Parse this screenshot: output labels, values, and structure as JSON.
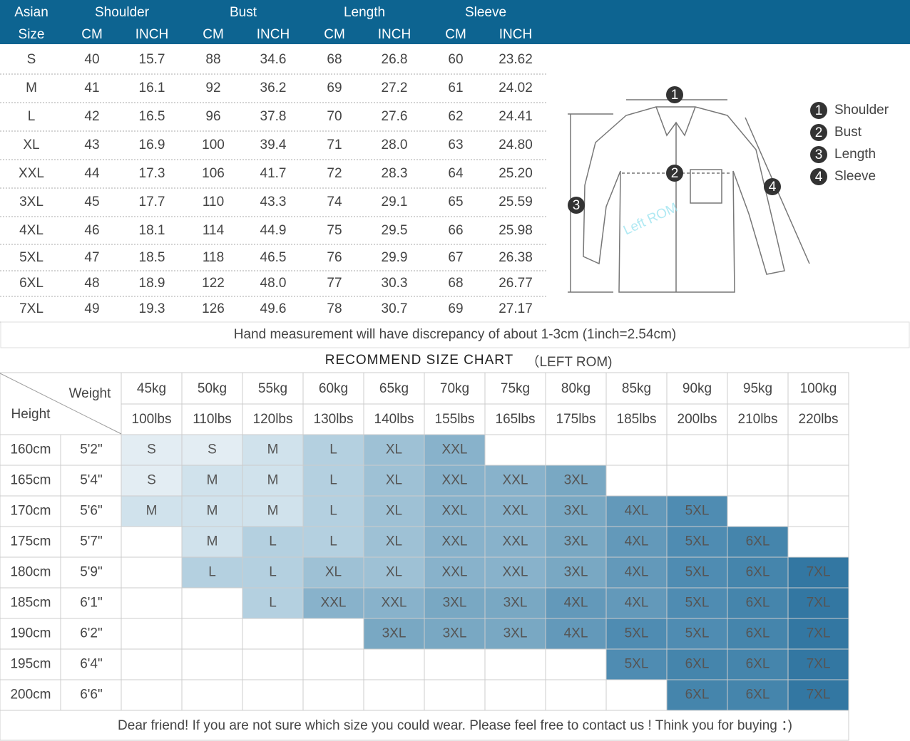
{
  "header": {
    "asian": "Asian",
    "size": "Size",
    "groups": [
      "Shoulder",
      "Bust",
      "Length",
      "Sleeve"
    ],
    "units": [
      "CM",
      "INCH",
      "CM",
      "INCH",
      "CM",
      "INCH",
      "CM",
      "INCH"
    ]
  },
  "measure_table": {
    "rows": [
      [
        "S",
        "40",
        "15.7",
        "88",
        "34.6",
        "68",
        "26.8",
        "60",
        "23.62"
      ],
      [
        "M",
        "41",
        "16.1",
        "92",
        "36.2",
        "69",
        "27.2",
        "61",
        "24.02"
      ],
      [
        "L",
        "42",
        "16.5",
        "96",
        "37.8",
        "70",
        "27.6",
        "62",
        "24.41"
      ],
      [
        "XL",
        "43",
        "16.9",
        "100",
        "39.4",
        "71",
        "28.0",
        "63",
        "24.80"
      ],
      [
        "XXL",
        "44",
        "17.3",
        "106",
        "41.7",
        "72",
        "28.3",
        "64",
        "25.20"
      ],
      [
        "3XL",
        "45",
        "17.7",
        "110",
        "43.3",
        "74",
        "29.1",
        "65",
        "25.59"
      ],
      [
        "4XL",
        "46",
        "18.1",
        "114",
        "44.9",
        "75",
        "29.5",
        "66",
        "25.98"
      ],
      [
        "5XL",
        "47",
        "18.5",
        "118",
        "46.5",
        "76",
        "29.9",
        "67",
        "26.38"
      ],
      [
        "6XL",
        "48",
        "18.9",
        "122",
        "48.0",
        "77",
        "30.3",
        "68",
        "26.77"
      ],
      [
        "7XL",
        "49",
        "19.3",
        "126",
        "49.6",
        "78",
        "30.7",
        "69",
        "27.17"
      ]
    ]
  },
  "diagram": {
    "markers": [
      "1",
      "2",
      "3",
      "4"
    ],
    "legend": [
      {
        "number": "1",
        "name": "Shoulder"
      },
      {
        "number": "2",
        "name": "Bust"
      },
      {
        "number": "3",
        "name": "Length"
      },
      {
        "number": "4",
        "name": "Sleeve"
      }
    ],
    "watermark": "Left ROM"
  },
  "note": "Hand measurement will have discrepancy of about 1-3cm (1inch=2.54cm)",
  "size_chart": {
    "title": "RECOMMEND SIZE CHART",
    "subtitle": "（LEFT ROM)",
    "weight_label": "Weight",
    "height_label": "Height",
    "kg": [
      "45kg",
      "50kg",
      "55kg",
      "60kg",
      "65kg",
      "70kg",
      "75kg",
      "80kg",
      "85kg",
      "90kg",
      "95kg",
      "100kg"
    ],
    "lbs": [
      "100lbs",
      "110lbs",
      "120lbs",
      "130lbs",
      "140lbs",
      "155lbs",
      "165lbs",
      "175lbs",
      "185lbs",
      "200lbs",
      "210lbs",
      "220lbs"
    ],
    "size_colors": {
      "S": "#e3edf3",
      "M": "#d0e2ec",
      "L": "#b4d0e0",
      "XL": "#9ec1d5",
      "XXL": "#88b2cb",
      "3XL": "#79a8c3",
      "4XL": "#6399ba",
      "5XL": "#4f8cb2",
      "6XL": "#4585ac",
      "7XL": "#3377a2"
    },
    "rows": [
      {
        "cm": "160cm",
        "ft": "5'2\"",
        "sizes": [
          "S",
          "S",
          "M",
          "L",
          "XL",
          "XXL",
          null,
          null,
          null,
          null,
          null,
          null
        ]
      },
      {
        "cm": "165cm",
        "ft": "5'4\"",
        "sizes": [
          "S",
          "M",
          "M",
          "L",
          "XL",
          "XXL",
          "XXL",
          "3XL",
          null,
          null,
          null,
          null
        ]
      },
      {
        "cm": "170cm",
        "ft": "5'6\"",
        "sizes": [
          "M",
          "M",
          "M",
          "L",
          "XL",
          "XXL",
          "XXL",
          "3XL",
          "4XL",
          "5XL",
          null,
          null
        ]
      },
      {
        "cm": "175cm",
        "ft": "5'7\"",
        "sizes": [
          null,
          "M",
          "L",
          "L",
          "XL",
          "XXL",
          "XXL",
          "3XL",
          "4XL",
          "5XL",
          "6XL",
          null
        ]
      },
      {
        "cm": "180cm",
        "ft": "5'9\"",
        "sizes": [
          null,
          "L",
          "L",
          "XL",
          "XL",
          "XXL",
          "XXL",
          "3XL",
          "4XL",
          "5XL",
          "6XL",
          "7XL"
        ]
      },
      {
        "cm": "185cm",
        "ft": "6'1\"",
        "sizes": [
          null,
          null,
          "L",
          "XXL",
          "XXL",
          "3XL",
          "3XL",
          "4XL",
          "4XL",
          "5XL",
          "6XL",
          "7XL"
        ]
      },
      {
        "cm": "190cm",
        "ft": "6'2\"",
        "sizes": [
          null,
          null,
          null,
          null,
          "3XL",
          "3XL",
          "3XL",
          "4XL",
          "5XL",
          "5XL",
          "6XL",
          "7XL"
        ]
      },
      {
        "cm": "195cm",
        "ft": "6'4\"",
        "sizes": [
          null,
          null,
          null,
          null,
          null,
          null,
          null,
          null,
          "5XL",
          "6XL",
          "6XL",
          "7XL"
        ]
      },
      {
        "cm": "200cm",
        "ft": "6'6\"",
        "sizes": [
          null,
          null,
          null,
          null,
          null,
          null,
          null,
          null,
          null,
          "6XL",
          "6XL",
          "7XL"
        ]
      }
    ]
  },
  "footer": "Dear friend! If you are not sure which size you could wear. Please feel free to contact us ! Think you for buying ：)"
}
